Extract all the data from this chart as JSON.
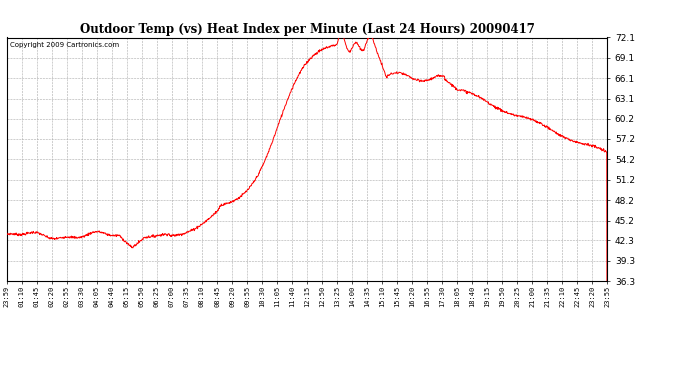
{
  "title": "Outdoor Temp (vs) Heat Index per Minute (Last 24 Hours) 20090417",
  "copyright": "Copyright 2009 Cartronics.com",
  "line_color": "#ff0000",
  "background_color": "#ffffff",
  "grid_color": "#aaaaaa",
  "yticks": [
    36.3,
    39.3,
    42.3,
    45.2,
    48.2,
    51.2,
    54.2,
    57.2,
    60.2,
    63.1,
    66.1,
    69.1,
    72.1
  ],
  "ymin": 36.3,
  "ymax": 72.1,
  "xtick_labels": [
    "23:59",
    "01:10",
    "01:45",
    "02:20",
    "02:55",
    "03:30",
    "04:05",
    "04:40",
    "05:15",
    "05:50",
    "06:25",
    "07:00",
    "07:35",
    "08:10",
    "08:45",
    "09:20",
    "09:55",
    "10:30",
    "11:05",
    "11:40",
    "12:15",
    "12:50",
    "13:25",
    "14:00",
    "14:35",
    "15:10",
    "15:45",
    "16:20",
    "16:55",
    "17:30",
    "18:05",
    "18:40",
    "19:15",
    "19:50",
    "20:25",
    "21:00",
    "21:35",
    "22:10",
    "22:45",
    "23:20",
    "23:55"
  ],
  "figwidth": 6.9,
  "figheight": 3.75,
  "dpi": 100
}
